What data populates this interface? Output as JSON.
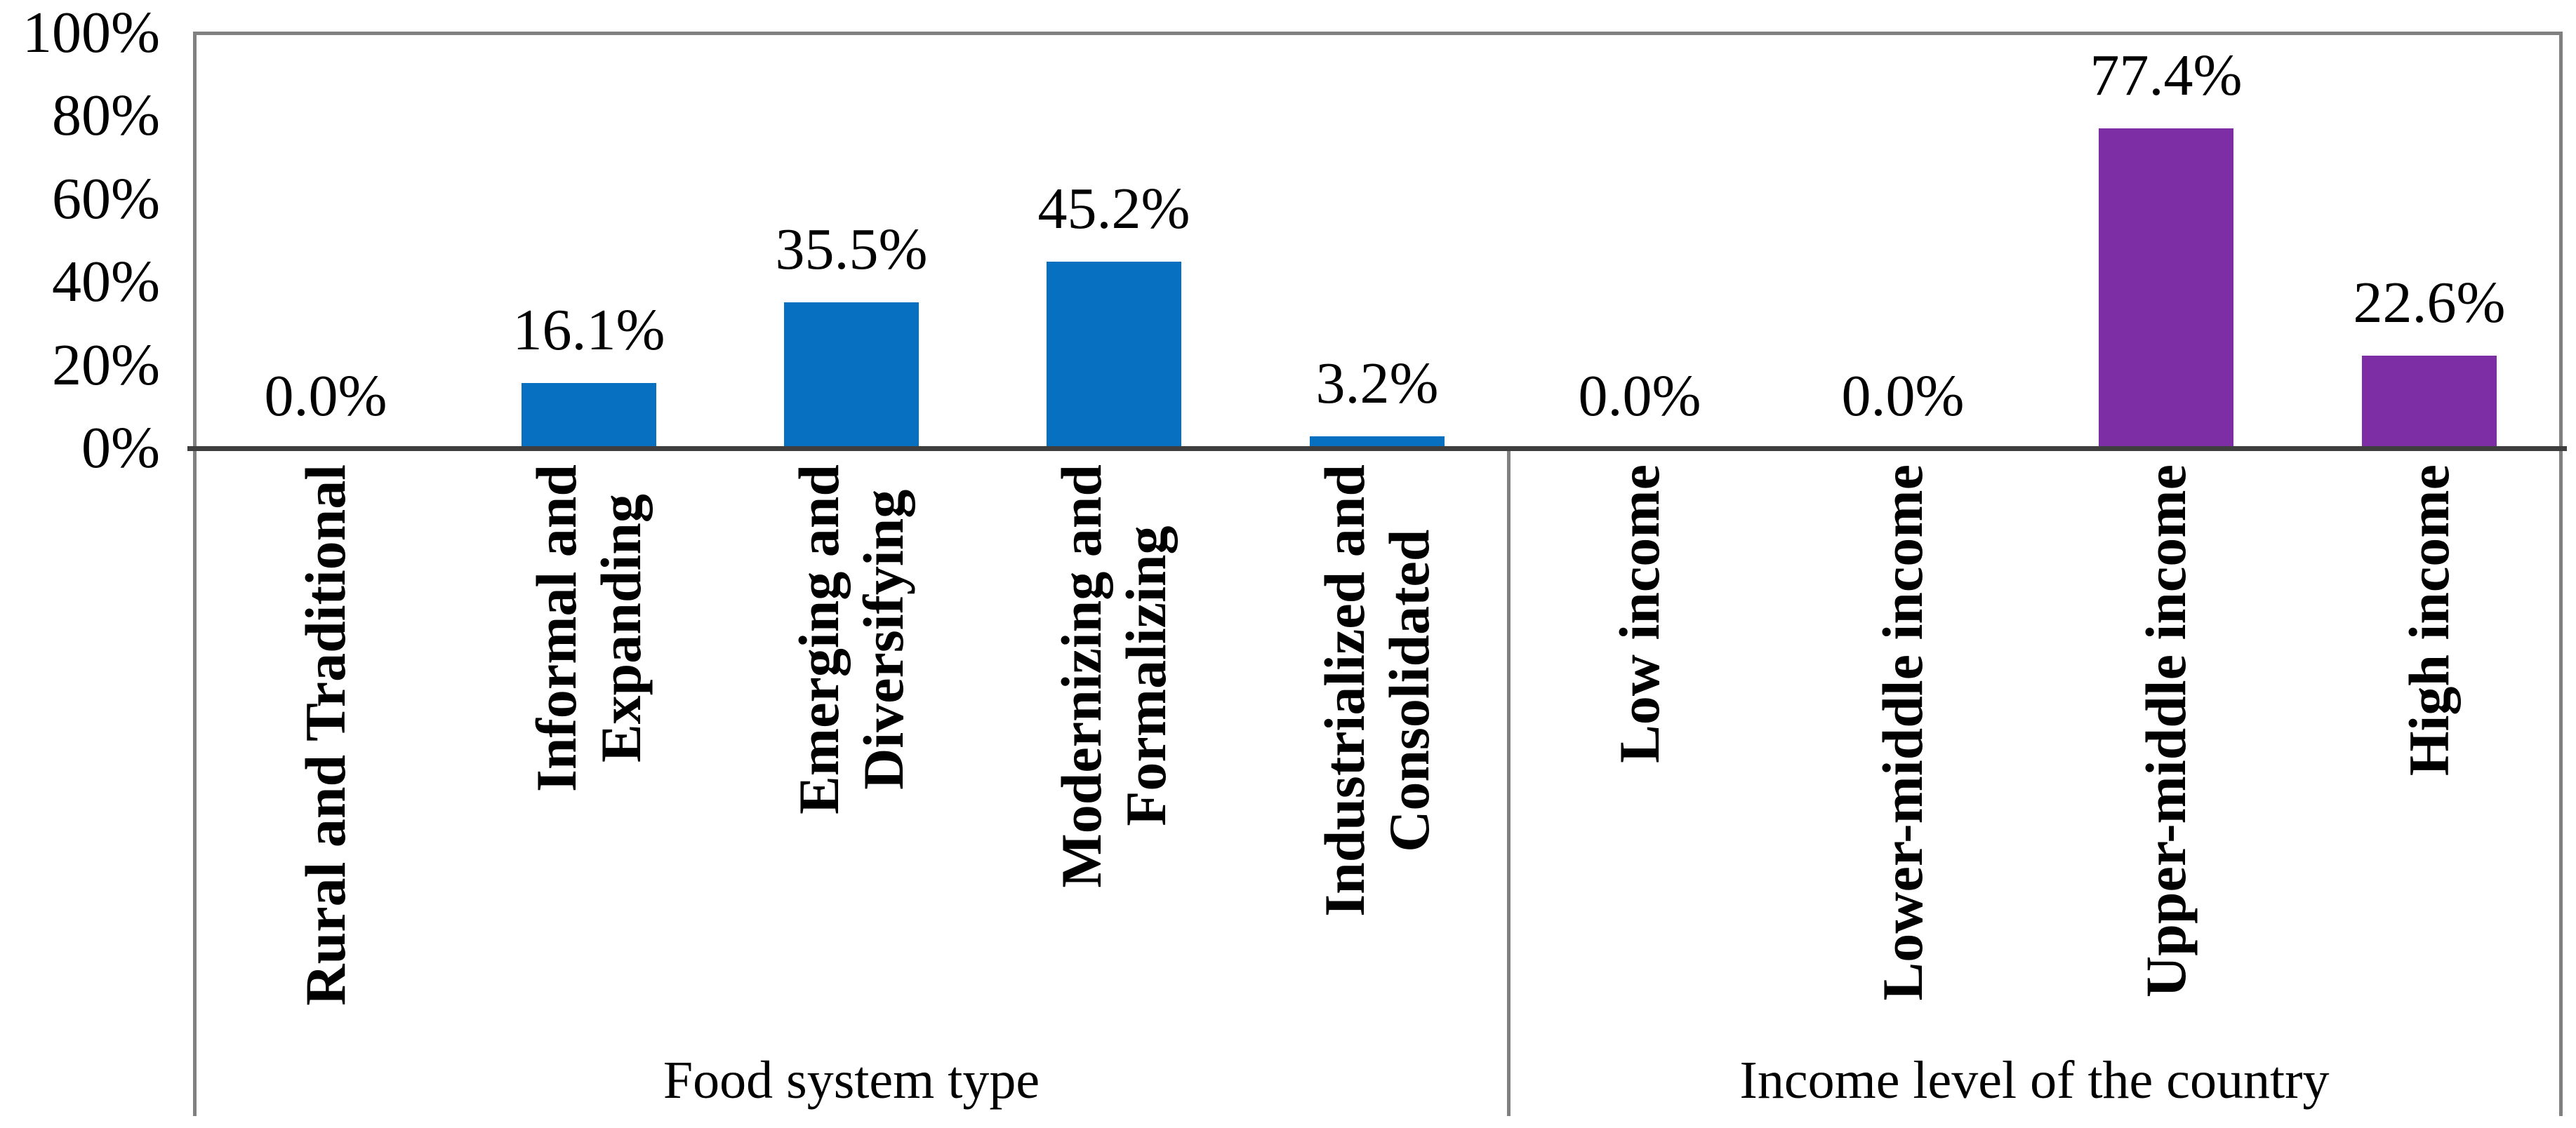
{
  "chart_data": {
    "type": "bar",
    "title": "",
    "y_axis": {
      "ticks": [
        "0%",
        "20%",
        "40%",
        "60%",
        "80%",
        "100%"
      ],
      "min": 0,
      "max": 100,
      "unit": "%"
    },
    "grid": false,
    "legend": false,
    "groups": [
      {
        "label": "Food system type",
        "bar_color": "#0870C1",
        "categories": [
          "Rural and Traditional",
          "Informal and\nExpanding",
          "Emerging and\nDiversifying",
          "Modernizing and\nFormalizing",
          "Industrialized and\nConsolidated"
        ],
        "values": [
          0.0,
          16.1,
          35.5,
          45.2,
          3.2
        ],
        "value_labels": [
          "0.0%",
          "16.1%",
          "35.5%",
          "45.2%",
          "3.2%"
        ]
      },
      {
        "label": "Income level of the country",
        "bar_color": "#7D2EA4",
        "categories": [
          "Low income",
          "Lower-middle income",
          "Upper-middle income",
          "High income"
        ],
        "values": [
          0.0,
          0.0,
          77.4,
          22.6
        ],
        "value_labels": [
          "0.0%",
          "0.0%",
          "77.4%",
          "22.6%"
        ]
      }
    ]
  },
  "colors": {
    "bar_blue": "#0870C1",
    "bar_purple": "#7D2EA4",
    "plot_border": "#808080",
    "axis_line": "#3E3E3E",
    "text": "#000000",
    "background": "#FFFFFF"
  }
}
